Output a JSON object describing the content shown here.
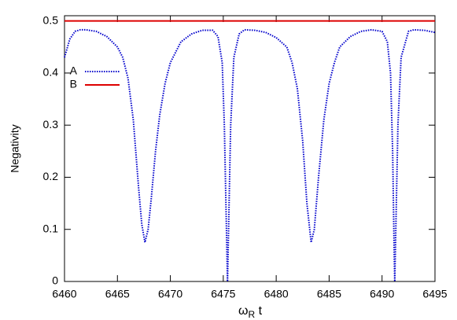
{
  "chart_data": {
    "type": "line",
    "xlabel": [
      "ω",
      "R",
      " t"
    ],
    "ylabel": "Negativity",
    "xlim": [
      6460,
      6495
    ],
    "xticks": [
      6460,
      6465,
      6470,
      6475,
      6480,
      6485,
      6490,
      6495
    ],
    "ylim": [
      0,
      0.51
    ],
    "yticks": [
      0,
      0.1,
      0.2,
      0.3,
      0.4,
      0.5
    ],
    "legend": "upper-left",
    "series": [
      {
        "name": "A",
        "color": "#0000cc",
        "style": "dotted",
        "x": [
          6460,
          6460.5,
          6461,
          6461.5,
          6462,
          6463,
          6464,
          6465,
          6465.5,
          6466,
          6466.5,
          6467,
          6467.3,
          6467.6,
          6467.9,
          6468.2,
          6468.6,
          6469,
          6469.5,
          6470,
          6471,
          6472,
          6473,
          6474,
          6474.5,
          6474.9,
          6475.1,
          6475.3,
          6475.4,
          6475.5,
          6475.7,
          6476,
          6476.5,
          6477,
          6478,
          6479,
          6480,
          6481,
          6481.5,
          6482,
          6482.5,
          6482.9,
          6483.3,
          6483.6,
          6484,
          6484.5,
          6485,
          6485.5,
          6486,
          6487,
          6488,
          6489,
          6490,
          6490.5,
          6490.8,
          6491,
          6491.15,
          6491.2,
          6491.3,
          6491.5,
          6491.8,
          6492.5,
          6493,
          6494,
          6495
        ],
        "values": [
          0.43,
          0.465,
          0.48,
          0.483,
          0.483,
          0.48,
          0.47,
          0.45,
          0.43,
          0.39,
          0.31,
          0.18,
          0.11,
          0.075,
          0.1,
          0.16,
          0.25,
          0.32,
          0.38,
          0.42,
          0.46,
          0.475,
          0.482,
          0.482,
          0.47,
          0.42,
          0.3,
          0.1,
          0,
          0.1,
          0.3,
          0.43,
          0.475,
          0.483,
          0.482,
          0.478,
          0.468,
          0.45,
          0.42,
          0.37,
          0.27,
          0.15,
          0.075,
          0.1,
          0.2,
          0.31,
          0.38,
          0.42,
          0.45,
          0.47,
          0.48,
          0.483,
          0.48,
          0.46,
          0.4,
          0.25,
          0.05,
          0,
          0.1,
          0.3,
          0.43,
          0.48,
          0.483,
          0.482,
          0.478
        ]
      },
      {
        "name": "B",
        "color": "#dd0000",
        "style": "solid",
        "x": [
          6460,
          6495
        ],
        "values": [
          0.5,
          0.5
        ]
      }
    ]
  }
}
